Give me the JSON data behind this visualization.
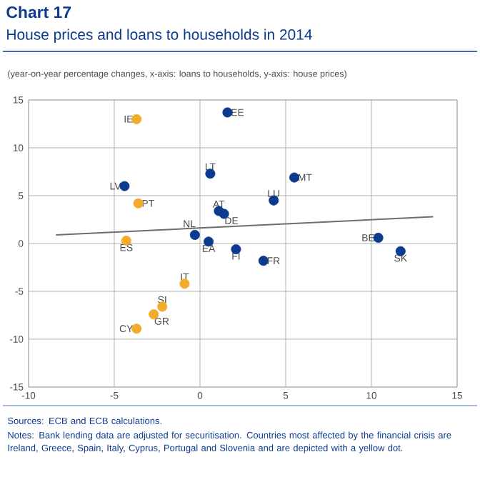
{
  "chart_data": {
    "type": "scatter",
    "title": "Chart 17",
    "subtitle": "House prices and loans to households in 2014",
    "series": [
      {
        "color": "#0b3a8f",
        "x": [
          1.6,
          0.6,
          -4.4,
          5.5,
          4.3,
          1.1,
          1.4,
          -0.3,
          0.5,
          2.1,
          3.7,
          10.4,
          11.7
        ],
        "values": [
          13.7,
          7.3,
          6.0,
          6.9,
          4.5,
          3.4,
          3.1,
          0.9,
          0.2,
          -0.6,
          -1.8,
          0.6,
          -0.8
        ]
      },
      {
        "color": "#f2ab2a",
        "x": [
          -3.7,
          -3.6,
          -4.3,
          -0.9,
          -2.2,
          -2.7,
          -3.7
        ],
        "values": [
          13.0,
          4.2,
          0.3,
          -4.2,
          -6.6,
          -7.4,
          -8.9
        ]
      },
      {
        "type": "line",
        "color": "#6e6e6e",
        "marker": "none",
        "x": [
          -8.4,
          13.6
        ],
        "values": [
          0.9,
          2.8
        ]
      }
    ],
    "xlim": [
      -10,
      15
    ],
    "ylim": [
      -15,
      15
    ],
    "xticks": [
      -10,
      -5,
      0,
      5,
      10,
      15
    ],
    "yticks": [
      -15,
      -10,
      -5,
      0,
      5,
      10,
      15
    ],
    "grid": true,
    "marker": "circle",
    "annotations": [
      "(year-on-year percentage changes, x-axis: loans to households, y-axis: house prices)",
      {
        "text": "EE",
        "x": 1.6,
        "y": 13.7
      },
      {
        "text": "LT",
        "x": 0.6,
        "y": 7.3
      },
      {
        "text": "LV",
        "x": -4.4,
        "y": 6.0
      },
      {
        "text": "MT",
        "x": 5.5,
        "y": 6.9
      },
      {
        "text": "LU",
        "x": 4.3,
        "y": 4.5
      },
      {
        "text": "AT",
        "x": 1.1,
        "y": 3.4
      },
      {
        "text": "DE",
        "x": 1.4,
        "y": 3.1
      },
      {
        "text": "NL",
        "x": -0.3,
        "y": 0.9
      },
      {
        "text": "EA",
        "x": 0.5,
        "y": 0.2
      },
      {
        "text": "FI",
        "x": 2.1,
        "y": -0.6
      },
      {
        "text": "FR",
        "x": 3.7,
        "y": -1.8
      },
      {
        "text": "BE",
        "x": 10.4,
        "y": 0.6
      },
      {
        "text": "SK",
        "x": 11.7,
        "y": -0.8
      },
      {
        "text": "IE",
        "x": -3.7,
        "y": 13.0
      },
      {
        "text": "PT",
        "x": -3.6,
        "y": 4.2
      },
      {
        "text": "ES",
        "x": -4.3,
        "y": 0.3
      },
      {
        "text": "IT",
        "x": -0.9,
        "y": -4.2
      },
      {
        "text": "SI",
        "x": -2.2,
        "y": -6.6
      },
      {
        "text": "GR",
        "x": -2.7,
        "y": -7.4
      },
      {
        "text": "CY",
        "x": -3.7,
        "y": -8.9
      },
      "Sources: ECB and ECB calculations.",
      "Notes: Bank lending data are adjusted for securitisation. Countries most affected by the financial crisis are Ireland, Greece, Spain, Italy, Cyprus, Portugal and Slovenia and are depicted with a yellow dot."
    ]
  }
}
